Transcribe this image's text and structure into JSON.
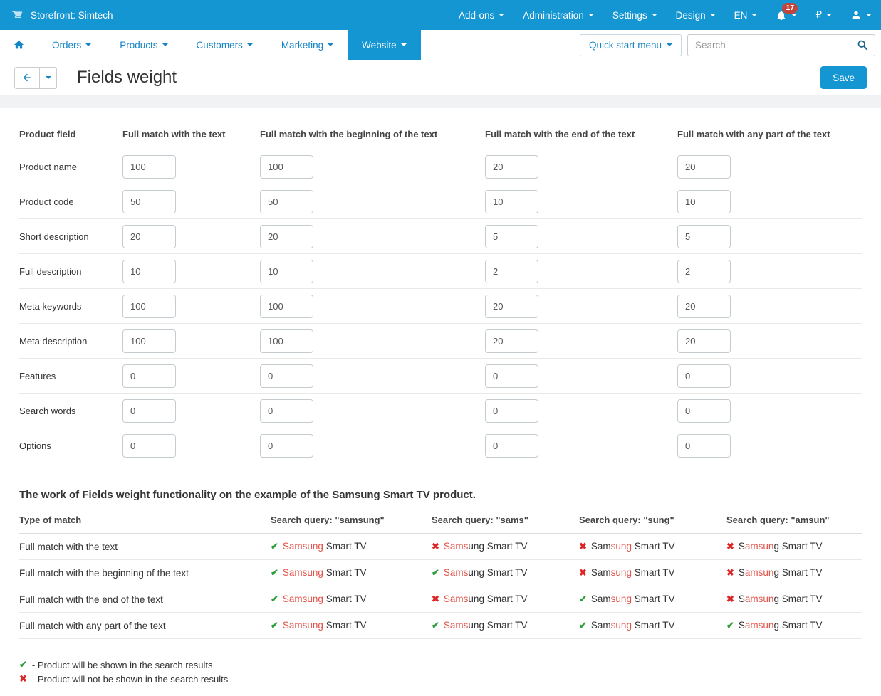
{
  "colors": {
    "accent_blue": "#1496d3",
    "link_blue": "#1585c5",
    "badge_red": "#c0453c",
    "check_green": "#2d9e3a",
    "cross_red": "#dd2727",
    "highlight_red": "#e4544b"
  },
  "topbar": {
    "storefront_label": "Storefront: Simtech",
    "menus": [
      "Add-ons",
      "Administration",
      "Settings",
      "Design",
      "EN"
    ],
    "notification_count": "17",
    "currency_symbol": "₽"
  },
  "nav": {
    "items": [
      "Orders",
      "Products",
      "Customers",
      "Marketing"
    ],
    "active_item": "Website",
    "quick_start_label": "Quick start menu",
    "search_placeholder": "Search"
  },
  "header": {
    "title": "Fields weight",
    "save_label": "Save"
  },
  "weights_table": {
    "headers": [
      "Product field",
      "Full match with the text",
      "Full match with the beginning of the text",
      "Full match with the end of the text",
      "Full match with any part of the text"
    ],
    "rows": [
      {
        "label": "Product name",
        "values": [
          "100",
          "100",
          "20",
          "20"
        ]
      },
      {
        "label": "Product code",
        "values": [
          "50",
          "50",
          "10",
          "10"
        ]
      },
      {
        "label": "Short description",
        "values": [
          "20",
          "20",
          "5",
          "5"
        ]
      },
      {
        "label": "Full description",
        "values": [
          "10",
          "10",
          "2",
          "2"
        ]
      },
      {
        "label": "Meta keywords",
        "values": [
          "100",
          "100",
          "20",
          "20"
        ]
      },
      {
        "label": "Meta description",
        "values": [
          "100",
          "100",
          "20",
          "20"
        ]
      },
      {
        "label": "Features",
        "values": [
          "0",
          "0",
          "0",
          "0"
        ]
      },
      {
        "label": "Search words",
        "values": [
          "0",
          "0",
          "0",
          "0"
        ]
      },
      {
        "label": "Options",
        "values": [
          "0",
          "0",
          "0",
          "0"
        ]
      }
    ]
  },
  "example": {
    "heading": "The work of Fields weight functionality on the example of the Samsung Smart TV product.",
    "headers": [
      "Type of match",
      "Search query: \"samsung\"",
      "Search query: \"sams\"",
      "Search query: \"sung\"",
      "Search query: \"amsun\""
    ],
    "product_highlights": [
      {
        "prefix": "",
        "match": "Samsung",
        "suffix": " Smart TV"
      },
      {
        "prefix": "",
        "match": "Sams",
        "suffix": "ung Smart TV"
      },
      {
        "prefix": "Sam",
        "match": "sung",
        "suffix": " Smart TV"
      },
      {
        "prefix": "S",
        "match": "amsun",
        "suffix": "g Smart TV"
      }
    ],
    "rows": [
      {
        "label": "Full match with the text",
        "results": [
          true,
          false,
          false,
          false
        ]
      },
      {
        "label": "Full match with the beginning of the text",
        "results": [
          true,
          true,
          false,
          false
        ]
      },
      {
        "label": "Full match with the end of the text",
        "results": [
          true,
          false,
          true,
          false
        ]
      },
      {
        "label": "Full match with any part of the text",
        "results": [
          true,
          true,
          true,
          true
        ]
      }
    ],
    "check_glyph": "✔",
    "cross_glyph": "✖",
    "legend": [
      {
        "result": true,
        "text": "- Product will be shown in the search results"
      },
      {
        "result": false,
        "text": "- Product will not be shown in the search results"
      }
    ]
  }
}
